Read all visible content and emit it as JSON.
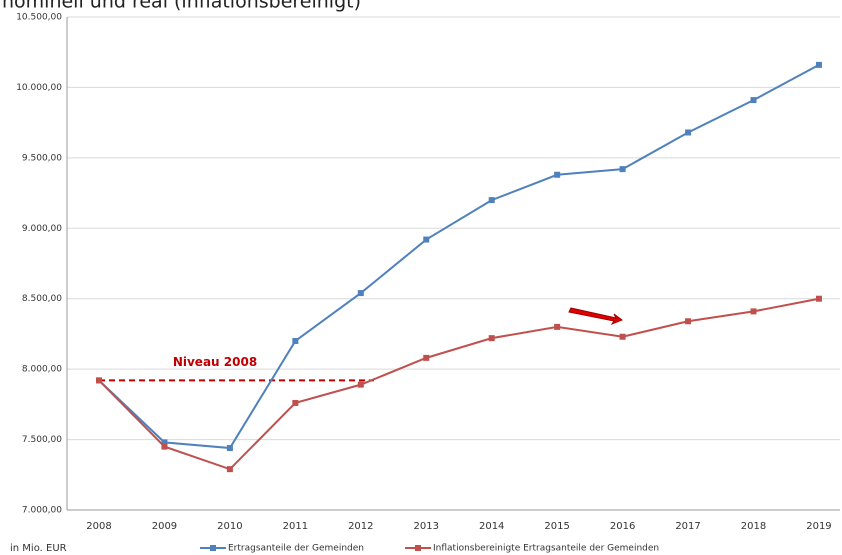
{
  "chart_data": {
    "type": "line",
    "title": "nominell und real (inflationsbereinigt)",
    "unit_note": "in Mio. EUR",
    "categories": [
      "2008",
      "2009",
      "2010",
      "2011",
      "2012",
      "2013",
      "2014",
      "2015",
      "2016",
      "2017",
      "2018",
      "2019"
    ],
    "series": [
      {
        "name": "Ertragsanteile der Gemeinden",
        "color": "#4f81bd",
        "values": [
          7920,
          7480,
          7440,
          8200,
          8540,
          8920,
          9200,
          9380,
          9420,
          9680,
          9910,
          10160
        ]
      },
      {
        "name": "Inflationsbereinigte Ertragsanteile der Gemeinden",
        "color": "#c0504d",
        "values": [
          7920,
          7450,
          7290,
          7760,
          7890,
          8080,
          8220,
          8300,
          8230,
          8340,
          8410,
          8500
        ]
      }
    ],
    "ylim": [
      7000,
      10500
    ],
    "yticks": [
      {
        "value": 7000,
        "label": "7.000,00"
      },
      {
        "value": 7500,
        "label": "7.500,00"
      },
      {
        "value": 8000,
        "label": "8.000,00"
      },
      {
        "value": 8500,
        "label": "8.500,00"
      },
      {
        "value": 9000,
        "label": "9.000,00"
      },
      {
        "value": 9500,
        "label": "9.500,00"
      },
      {
        "value": 10000,
        "label": "10.000,00"
      },
      {
        "value": 10500,
        "label": "10.500,00"
      }
    ],
    "grid": true,
    "reference_line": {
      "label": "Niveau 2008",
      "value": 7920,
      "color": "#c00000"
    },
    "legend": "bottom"
  }
}
